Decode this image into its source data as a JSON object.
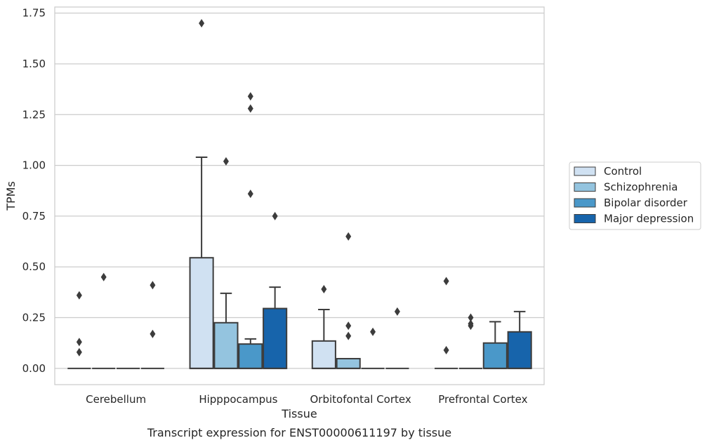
{
  "chart_data": {
    "type": "box",
    "xlabel": "Tissue",
    "ylabel": "TPMs",
    "caption": "Transcript expression for ENST00000611197 by tissue",
    "ylim": [
      -0.08,
      1.78
    ],
    "yticks": [
      0.0,
      0.25,
      0.5,
      0.75,
      1.0,
      1.25,
      1.5,
      1.75
    ],
    "ytick_labels": [
      "0.00",
      "0.25",
      "0.50",
      "0.75",
      "1.00",
      "1.25",
      "1.50",
      "1.75"
    ],
    "grid": "horizontal",
    "legend_position": "right",
    "categories": [
      "Cerebellum",
      "Hipppocampus",
      "Orbitofontal Cortex",
      "Prefrontal Cortex"
    ],
    "series": [
      {
        "name": "Control",
        "color": "#d0e1f2",
        "boxes": [
          {
            "q1": 0,
            "median": 0,
            "q3": 0,
            "whisker_low": 0,
            "whisker_high": 0,
            "outliers": [
              0.36,
              0.13,
              0.08
            ]
          },
          {
            "q1": 0,
            "median": 0,
            "q3": 0.545,
            "whisker_low": 0,
            "whisker_high": 1.04,
            "outliers": [
              1.7
            ]
          },
          {
            "q1": 0,
            "median": 0,
            "q3": 0.135,
            "whisker_low": 0,
            "whisker_high": 0.29,
            "outliers": [
              0.39
            ]
          },
          {
            "q1": 0,
            "median": 0,
            "q3": 0,
            "whisker_low": 0,
            "whisker_high": 0,
            "outliers": [
              0.43,
              0.09
            ]
          }
        ]
      },
      {
        "name": "Schizophrenia",
        "color": "#94c4df",
        "boxes": [
          {
            "q1": 0,
            "median": 0,
            "q3": 0,
            "whisker_low": 0,
            "whisker_high": 0,
            "outliers": [
              0.45
            ]
          },
          {
            "q1": 0,
            "median": 0,
            "q3": 0.225,
            "whisker_low": 0,
            "whisker_high": 0.37,
            "outliers": [
              1.02
            ]
          },
          {
            "q1": 0,
            "median": 0,
            "q3": 0.048,
            "whisker_low": 0,
            "whisker_high": 0.048,
            "outliers": [
              0.65,
              0.21,
              0.16
            ]
          },
          {
            "q1": 0,
            "median": 0,
            "q3": 0,
            "whisker_low": 0,
            "whisker_high": 0,
            "outliers": [
              0.25,
              0.22,
              0.21
            ]
          }
        ]
      },
      {
        "name": "Bipolar disorder",
        "color": "#4a98c9",
        "boxes": [
          {
            "q1": 0,
            "median": 0,
            "q3": 0,
            "whisker_low": 0,
            "whisker_high": 0,
            "outliers": []
          },
          {
            "q1": 0,
            "median": 0,
            "q3": 0.12,
            "whisker_low": 0,
            "whisker_high": 0.145,
            "outliers": [
              1.34,
              1.28,
              0.86
            ]
          },
          {
            "q1": 0,
            "median": 0,
            "q3": 0,
            "whisker_low": 0,
            "whisker_high": 0,
            "outliers": [
              0.18
            ]
          },
          {
            "q1": 0,
            "median": 0,
            "q3": 0.125,
            "whisker_low": 0,
            "whisker_high": 0.23,
            "outliers": []
          }
        ]
      },
      {
        "name": "Major depression",
        "color": "#1764ab",
        "boxes": [
          {
            "q1": 0,
            "median": 0,
            "q3": 0,
            "whisker_low": 0,
            "whisker_high": 0,
            "outliers": [
              0.41,
              0.17
            ]
          },
          {
            "q1": 0,
            "median": 0,
            "q3": 0.295,
            "whisker_low": 0,
            "whisker_high": 0.4,
            "outliers": [
              0.75
            ]
          },
          {
            "q1": 0,
            "median": 0,
            "q3": 0,
            "whisker_low": 0,
            "whisker_high": 0,
            "outliers": [
              0.28
            ]
          },
          {
            "q1": 0,
            "median": 0,
            "q3": 0.18,
            "whisker_low": 0,
            "whisker_high": 0.28,
            "outliers": []
          }
        ]
      }
    ]
  }
}
